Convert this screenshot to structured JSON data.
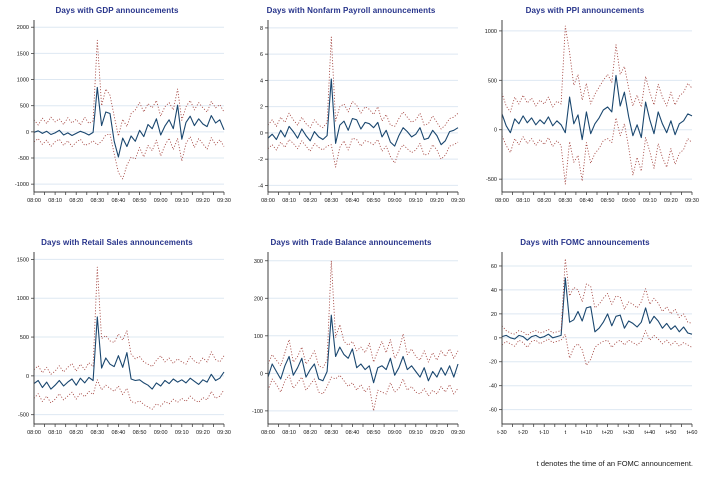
{
  "figure": {
    "caption": "t denotes the time of an FOMC announcement.",
    "colors": {
      "title": "#27348b",
      "line": "#1a476f",
      "band": "#a2423d",
      "grid": "#dee8f2",
      "axis": "#404040"
    }
  },
  "chart_data": [
    {
      "type": "line",
      "title": "Days with GDP announcements",
      "x_ticks": [
        "08:00",
        "08:10",
        "08:20",
        "08:30",
        "08:40",
        "08:50",
        "09:00",
        "09:10",
        "09:20",
        "09:30"
      ],
      "y_ticks": [
        -1000,
        -500,
        0,
        500,
        1000,
        1500,
        2000
      ],
      "ylim": [
        -1150,
        2100
      ],
      "legend": "off",
      "series": [
        {
          "name": "response",
          "style": "solid",
          "values": [
            -10,
            20,
            -30,
            10,
            -50,
            -20,
            30,
            -60,
            -20,
            -70,
            -30,
            10,
            -20,
            -60,
            -10,
            850,
            120,
            380,
            350,
            -180,
            -480,
            -120,
            -280,
            -80,
            -180,
            30,
            -90,
            140,
            60,
            250,
            -60,
            110,
            230,
            60,
            510,
            -140,
            180,
            300,
            120,
            250,
            150,
            100,
            310,
            170,
            230,
            40
          ]
        },
        {
          "name": "upper band",
          "style": "dotted",
          "values": [
            230,
            130,
            260,
            160,
            280,
            190,
            250,
            140,
            270,
            170,
            240,
            130,
            280,
            160,
            210,
            1750,
            500,
            820,
            700,
            300,
            -80,
            240,
            100,
            350,
            420,
            560,
            380,
            540,
            460,
            600,
            300,
            480,
            560,
            420,
            820,
            220,
            480,
            600,
            420,
            560,
            460,
            380,
            580,
            460,
            520,
            380
          ]
        },
        {
          "name": "lower band",
          "style": "dotted",
          "values": [
            -190,
            -130,
            -240,
            -160,
            -280,
            -190,
            -140,
            -260,
            -170,
            -280,
            -200,
            -140,
            -260,
            -230,
            -170,
            -250,
            -180,
            -60,
            -40,
            -420,
            -780,
            -900,
            -640,
            -480,
            -520,
            -300,
            -480,
            -260,
            -360,
            -160,
            -460,
            -260,
            -120,
            -340,
            -130,
            -560,
            -220,
            -90,
            -300,
            -130,
            -230,
            -330,
            -110,
            -250,
            -150,
            -280
          ]
        }
      ]
    },
    {
      "type": "line",
      "title": "Days with Nonfarm Payroll announcements",
      "x_ticks": [
        "08:00",
        "08:10",
        "08:20",
        "08:30",
        "08:40",
        "08:50",
        "09:00",
        "09:10",
        "09:20",
        "09:30"
      ],
      "y_ticks": [
        -4,
        -2,
        0,
        2,
        4,
        6,
        8
      ],
      "ylim": [
        -4.5,
        8.45
      ],
      "legend": "off",
      "series": [
        {
          "name": "response",
          "style": "solid",
          "values": [
            -0.4,
            -0.1,
            -0.5,
            0.2,
            -0.3,
            0.5,
            0.1,
            -0.4,
            0.3,
            -0.2,
            -0.6,
            0.1,
            -0.3,
            -0.5,
            -0.2,
            4.1,
            -0.8,
            0.6,
            0.9,
            0.2,
            1.1,
            1.0,
            0.3,
            0.8,
            0.7,
            0.4,
            0.8,
            -0.3,
            0.2,
            -0.7,
            -1.0,
            -0.2,
            0.4,
            0.1,
            -0.3,
            -0.1,
            0.4,
            -0.5,
            -0.4,
            0.2,
            -0.2,
            -0.9,
            -0.6,
            0.1,
            0.2,
            0.4
          ]
        },
        {
          "name": "upper band",
          "style": "dotted",
          "values": [
            0.6,
            1.0,
            0.5,
            1.2,
            0.8,
            1.5,
            1.0,
            0.6,
            1.2,
            0.7,
            0.4,
            1.0,
            0.6,
            0.4,
            0.8,
            7.3,
            0.9,
            2.0,
            2.2,
            1.6,
            2.4,
            2.1,
            1.5,
            2.0,
            1.8,
            1.4,
            2.0,
            0.9,
            1.4,
            0.6,
            0.5,
            1.1,
            1.6,
            1.2,
            0.8,
            1.0,
            1.5,
            0.6,
            0.7,
            1.3,
            0.8,
            0.3,
            0.6,
            1.1,
            1.2,
            1.5
          ]
        },
        {
          "name": "lower band",
          "style": "dotted",
          "values": [
            -1.2,
            -0.9,
            -1.3,
            -0.7,
            -1.1,
            -0.5,
            -0.8,
            -1.2,
            -0.6,
            -1.0,
            -1.4,
            -0.8,
            -1.1,
            -1.3,
            -1.0,
            -0.9,
            -2.6,
            -1.1,
            -0.6,
            -1.3,
            -0.4,
            -0.5,
            -1.0,
            -0.6,
            -0.7,
            -0.9,
            -0.5,
            -1.4,
            -1.0,
            -1.8,
            -2.3,
            -1.4,
            -0.9,
            -1.2,
            -1.5,
            -1.3,
            -0.8,
            -1.7,
            -1.6,
            -0.9,
            -1.3,
            -2.0,
            -1.7,
            -1.0,
            -0.9,
            -0.7
          ]
        }
      ]
    },
    {
      "type": "line",
      "title": "Days with PPI announcements",
      "x_ticks": [
        "08:00",
        "08:10",
        "08:20",
        "08:30",
        "08:40",
        "08:50",
        "09:00",
        "09:10",
        "09:20",
        "09:30"
      ],
      "y_ticks": [
        -500,
        0,
        500,
        1000
      ],
      "ylim": [
        -630,
        1090
      ],
      "legend": "off",
      "series": [
        {
          "name": "response",
          "style": "solid",
          "values": [
            160,
            40,
            -30,
            110,
            60,
            140,
            70,
            120,
            50,
            100,
            60,
            130,
            40,
            90,
            50,
            -30,
            330,
            60,
            150,
            -100,
            180,
            -40,
            60,
            120,
            200,
            230,
            180,
            550,
            240,
            380,
            130,
            -60,
            50,
            -80,
            280,
            100,
            -40,
            180,
            60,
            -30,
            90,
            -50,
            60,
            90,
            160,
            140
          ]
        },
        {
          "name": "upper band",
          "style": "dotted",
          "values": [
            370,
            240,
            180,
            330,
            260,
            350,
            270,
            320,
            240,
            300,
            260,
            330,
            230,
            290,
            260,
            1050,
            780,
            450,
            560,
            300,
            470,
            260,
            360,
            430,
            500,
            560,
            480,
            860,
            560,
            640,
            420,
            240,
            350,
            230,
            540,
            380,
            250,
            460,
            330,
            240,
            380,
            250,
            340,
            380,
            470,
            420
          ]
        },
        {
          "name": "lower band",
          "style": "dotted",
          "values": [
            -60,
            -160,
            -230,
            -90,
            -150,
            -70,
            -140,
            -90,
            -160,
            -100,
            -150,
            -80,
            -170,
            -110,
            -160,
            -550,
            -120,
            -330,
            -260,
            -520,
            -130,
            -340,
            -240,
            -190,
            -110,
            -90,
            -130,
            120,
            -60,
            60,
            -180,
            -460,
            -280,
            -420,
            -80,
            -220,
            -390,
            -140,
            -280,
            -380,
            -190,
            -350,
            -240,
            -200,
            -90,
            -130
          ]
        }
      ]
    },
    {
      "type": "line",
      "title": "Days with Retail Sales announcements",
      "x_ticks": [
        "08:00",
        "08:10",
        "08:20",
        "08:30",
        "08:40",
        "08:50",
        "09:00",
        "09:10",
        "09:20",
        "09:30"
      ],
      "y_ticks": [
        -500,
        0,
        500,
        1000,
        1500
      ],
      "ylim": [
        -620,
        1570
      ],
      "legend": "off",
      "series": [
        {
          "name": "response",
          "style": "solid",
          "values": [
            -100,
            -60,
            -150,
            -80,
            -170,
            -120,
            -60,
            -130,
            -80,
            -40,
            -120,
            -30,
            -90,
            -20,
            -60,
            760,
            100,
            230,
            150,
            120,
            260,
            110,
            300,
            -40,
            -60,
            -50,
            -90,
            -120,
            -170,
            -90,
            -130,
            -60,
            -100,
            -40,
            -80,
            -50,
            -90,
            -30,
            -70,
            -110,
            -50,
            -80,
            20,
            -60,
            -30,
            50
          ]
        },
        {
          "name": "upper band",
          "style": "dotted",
          "values": [
            80,
            130,
            40,
            110,
            20,
            60,
            130,
            50,
            110,
            160,
            60,
            150,
            80,
            170,
            120,
            1400,
            480,
            520,
            450,
            430,
            540,
            460,
            580,
            280,
            220,
            250,
            180,
            150,
            120,
            200,
            260,
            180,
            230,
            160,
            220,
            180,
            150,
            250,
            190,
            160,
            230,
            180,
            310,
            210,
            180,
            260
          ]
        },
        {
          "name": "lower band",
          "style": "dotted",
          "values": [
            -290,
            -230,
            -330,
            -260,
            -350,
            -300,
            -230,
            -310,
            -260,
            -210,
            -300,
            -220,
            -270,
            -200,
            -240,
            -50,
            -180,
            -120,
            -160,
            -200,
            -130,
            -240,
            -160,
            -330,
            -350,
            -320,
            -370,
            -400,
            -430,
            -360,
            -390,
            -330,
            -360,
            -300,
            -340,
            -290,
            -330,
            -260,
            -310,
            -340,
            -280,
            -310,
            -200,
            -290,
            -260,
            -180
          ]
        }
      ]
    },
    {
      "type": "line",
      "title": "Days with Trade Balance announcements",
      "x_ticks": [
        "08:00",
        "08:10",
        "08:20",
        "08:30",
        "08:40",
        "08:50",
        "09:00",
        "09:10",
        "09:20",
        "09:30"
      ],
      "y_ticks": [
        -100,
        0,
        100,
        200,
        300
      ],
      "ylim": [
        -135,
        318
      ],
      "legend": "off",
      "series": [
        {
          "name": "response",
          "style": "solid",
          "values": [
            -10,
            25,
            5,
            -15,
            20,
            45,
            -5,
            15,
            40,
            -10,
            10,
            25,
            -15,
            -20,
            5,
            155,
            45,
            70,
            50,
            40,
            65,
            15,
            25,
            10,
            20,
            -25,
            15,
            20,
            10,
            40,
            -5,
            15,
            45,
            10,
            20,
            5,
            -10,
            15,
            -20,
            5,
            -10,
            15,
            -5,
            20,
            -10,
            25
          ]
        },
        {
          "name": "upper band",
          "style": "dotted",
          "values": [
            25,
            50,
            35,
            20,
            55,
            90,
            30,
            45,
            70,
            25,
            40,
            60,
            20,
            15,
            35,
            300,
            95,
            130,
            85,
            75,
            85,
            60,
            70,
            55,
            80,
            30,
            60,
            85,
            55,
            90,
            40,
            60,
            105,
            50,
            65,
            45,
            35,
            60,
            30,
            55,
            35,
            60,
            45,
            65,
            40,
            60
          ]
        },
        {
          "name": "lower band",
          "style": "dotted",
          "values": [
            -45,
            -15,
            -30,
            -50,
            -20,
            -5,
            -40,
            -25,
            -10,
            -45,
            -30,
            -15,
            -50,
            -55,
            -35,
            -10,
            -15,
            -5,
            -20,
            -35,
            -25,
            -45,
            -30,
            -50,
            -35,
            -100,
            -45,
            -50,
            -55,
            -25,
            -50,
            -40,
            -15,
            -45,
            -35,
            -50,
            -55,
            -40,
            -60,
            -45,
            -55,
            -35,
            -50,
            -30,
            -55,
            -40
          ]
        }
      ]
    },
    {
      "type": "line",
      "title": "Days with FOMC announcements",
      "x_ticks": [
        "t-30",
        "t-20",
        "t-10",
        "t",
        "t+10",
        "t+20",
        "t+30",
        "t+40",
        "t+50",
        "t+60"
      ],
      "y_ticks": [
        -60,
        -40,
        -20,
        0,
        20,
        40,
        60
      ],
      "ylim": [
        -72,
        70
      ],
      "legend": "off",
      "series": [
        {
          "name": "response",
          "style": "solid",
          "values": [
            1,
            2,
            0,
            -1,
            2,
            1,
            -2,
            1,
            2,
            0,
            1,
            3,
            0,
            1,
            2,
            50,
            13,
            15,
            22,
            14,
            25,
            26,
            5,
            8,
            13,
            20,
            10,
            18,
            19,
            8,
            14,
            12,
            9,
            13,
            25,
            12,
            18,
            14,
            8,
            12,
            7,
            10,
            5,
            9,
            4,
            3
          ]
        },
        {
          "name": "upper band",
          "style": "dotted",
          "values": [
            10,
            6,
            4,
            3,
            6,
            5,
            2,
            5,
            6,
            4,
            5,
            7,
            4,
            5,
            6,
            66,
            35,
            42,
            40,
            30,
            45,
            43,
            25,
            28,
            33,
            37,
            28,
            35,
            34,
            24,
            30,
            28,
            25,
            30,
            41,
            28,
            33,
            29,
            22,
            26,
            20,
            24,
            17,
            20,
            13,
            12
          ]
        },
        {
          "name": "lower band",
          "style": "dotted",
          "values": [
            -6,
            -3,
            -5,
            -7,
            -2,
            -4,
            -8,
            -3,
            -2,
            -5,
            -3,
            -1,
            -4,
            -3,
            -2,
            3,
            -17,
            -8,
            -5,
            -10,
            -23,
            -18,
            -8,
            -5,
            -3,
            -2,
            -8,
            -4,
            -2,
            -6,
            -2,
            -4,
            -6,
            -3,
            6,
            -2,
            2,
            -1,
            -5,
            -2,
            -6,
            -3,
            -7,
            -4,
            -6,
            -8
          ]
        }
      ]
    }
  ]
}
